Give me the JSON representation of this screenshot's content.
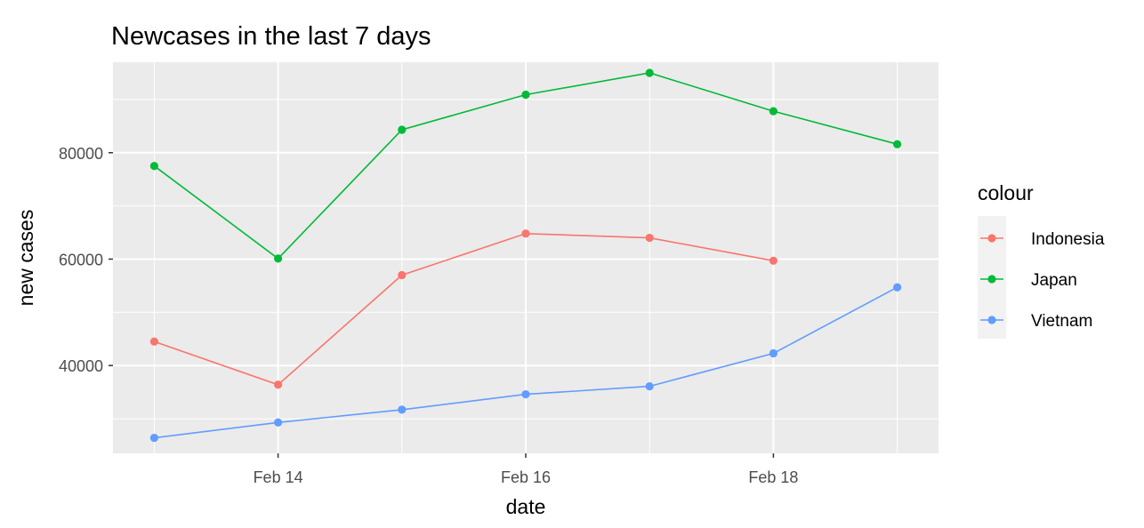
{
  "chart_data": {
    "type": "line",
    "title": "Newcases in the last 7 days",
    "xlabel": "date",
    "ylabel": "new cases",
    "x": [
      "2022-02-13",
      "2022-02-14",
      "2022-02-15",
      "2022-02-16",
      "2022-02-17",
      "2022-02-18",
      "2022-02-19"
    ],
    "x_ticks": [
      {
        "date": "2022-02-14",
        "label": "Feb 14"
      },
      {
        "date": "2022-02-16",
        "label": "Feb 16"
      },
      {
        "date": "2022-02-18",
        "label": "Feb 18"
      }
    ],
    "xlim": [
      "2022-02-12T16:00",
      "2022-02-19T08:00"
    ],
    "ylim": [
      23500,
      97000
    ],
    "y_ticks": [
      40000,
      60000,
      80000
    ],
    "y_tick_labels": [
      "40000",
      "60000",
      "80000"
    ],
    "grid": true,
    "legend": {
      "title": "colour",
      "position": "right"
    },
    "series": [
      {
        "name": "Indonesia",
        "color": "#F8766D",
        "values": [
          44500,
          36400,
          57000,
          64800,
          64000,
          59700,
          null
        ]
      },
      {
        "name": "Japan",
        "color": "#00BA38",
        "values": [
          77500,
          60100,
          84300,
          90900,
          95000,
          87800,
          81600
        ]
      },
      {
        "name": "Vietnam",
        "color": "#619CFF",
        "values": [
          26400,
          29300,
          31700,
          34600,
          36100,
          42300,
          54700
        ]
      }
    ]
  }
}
